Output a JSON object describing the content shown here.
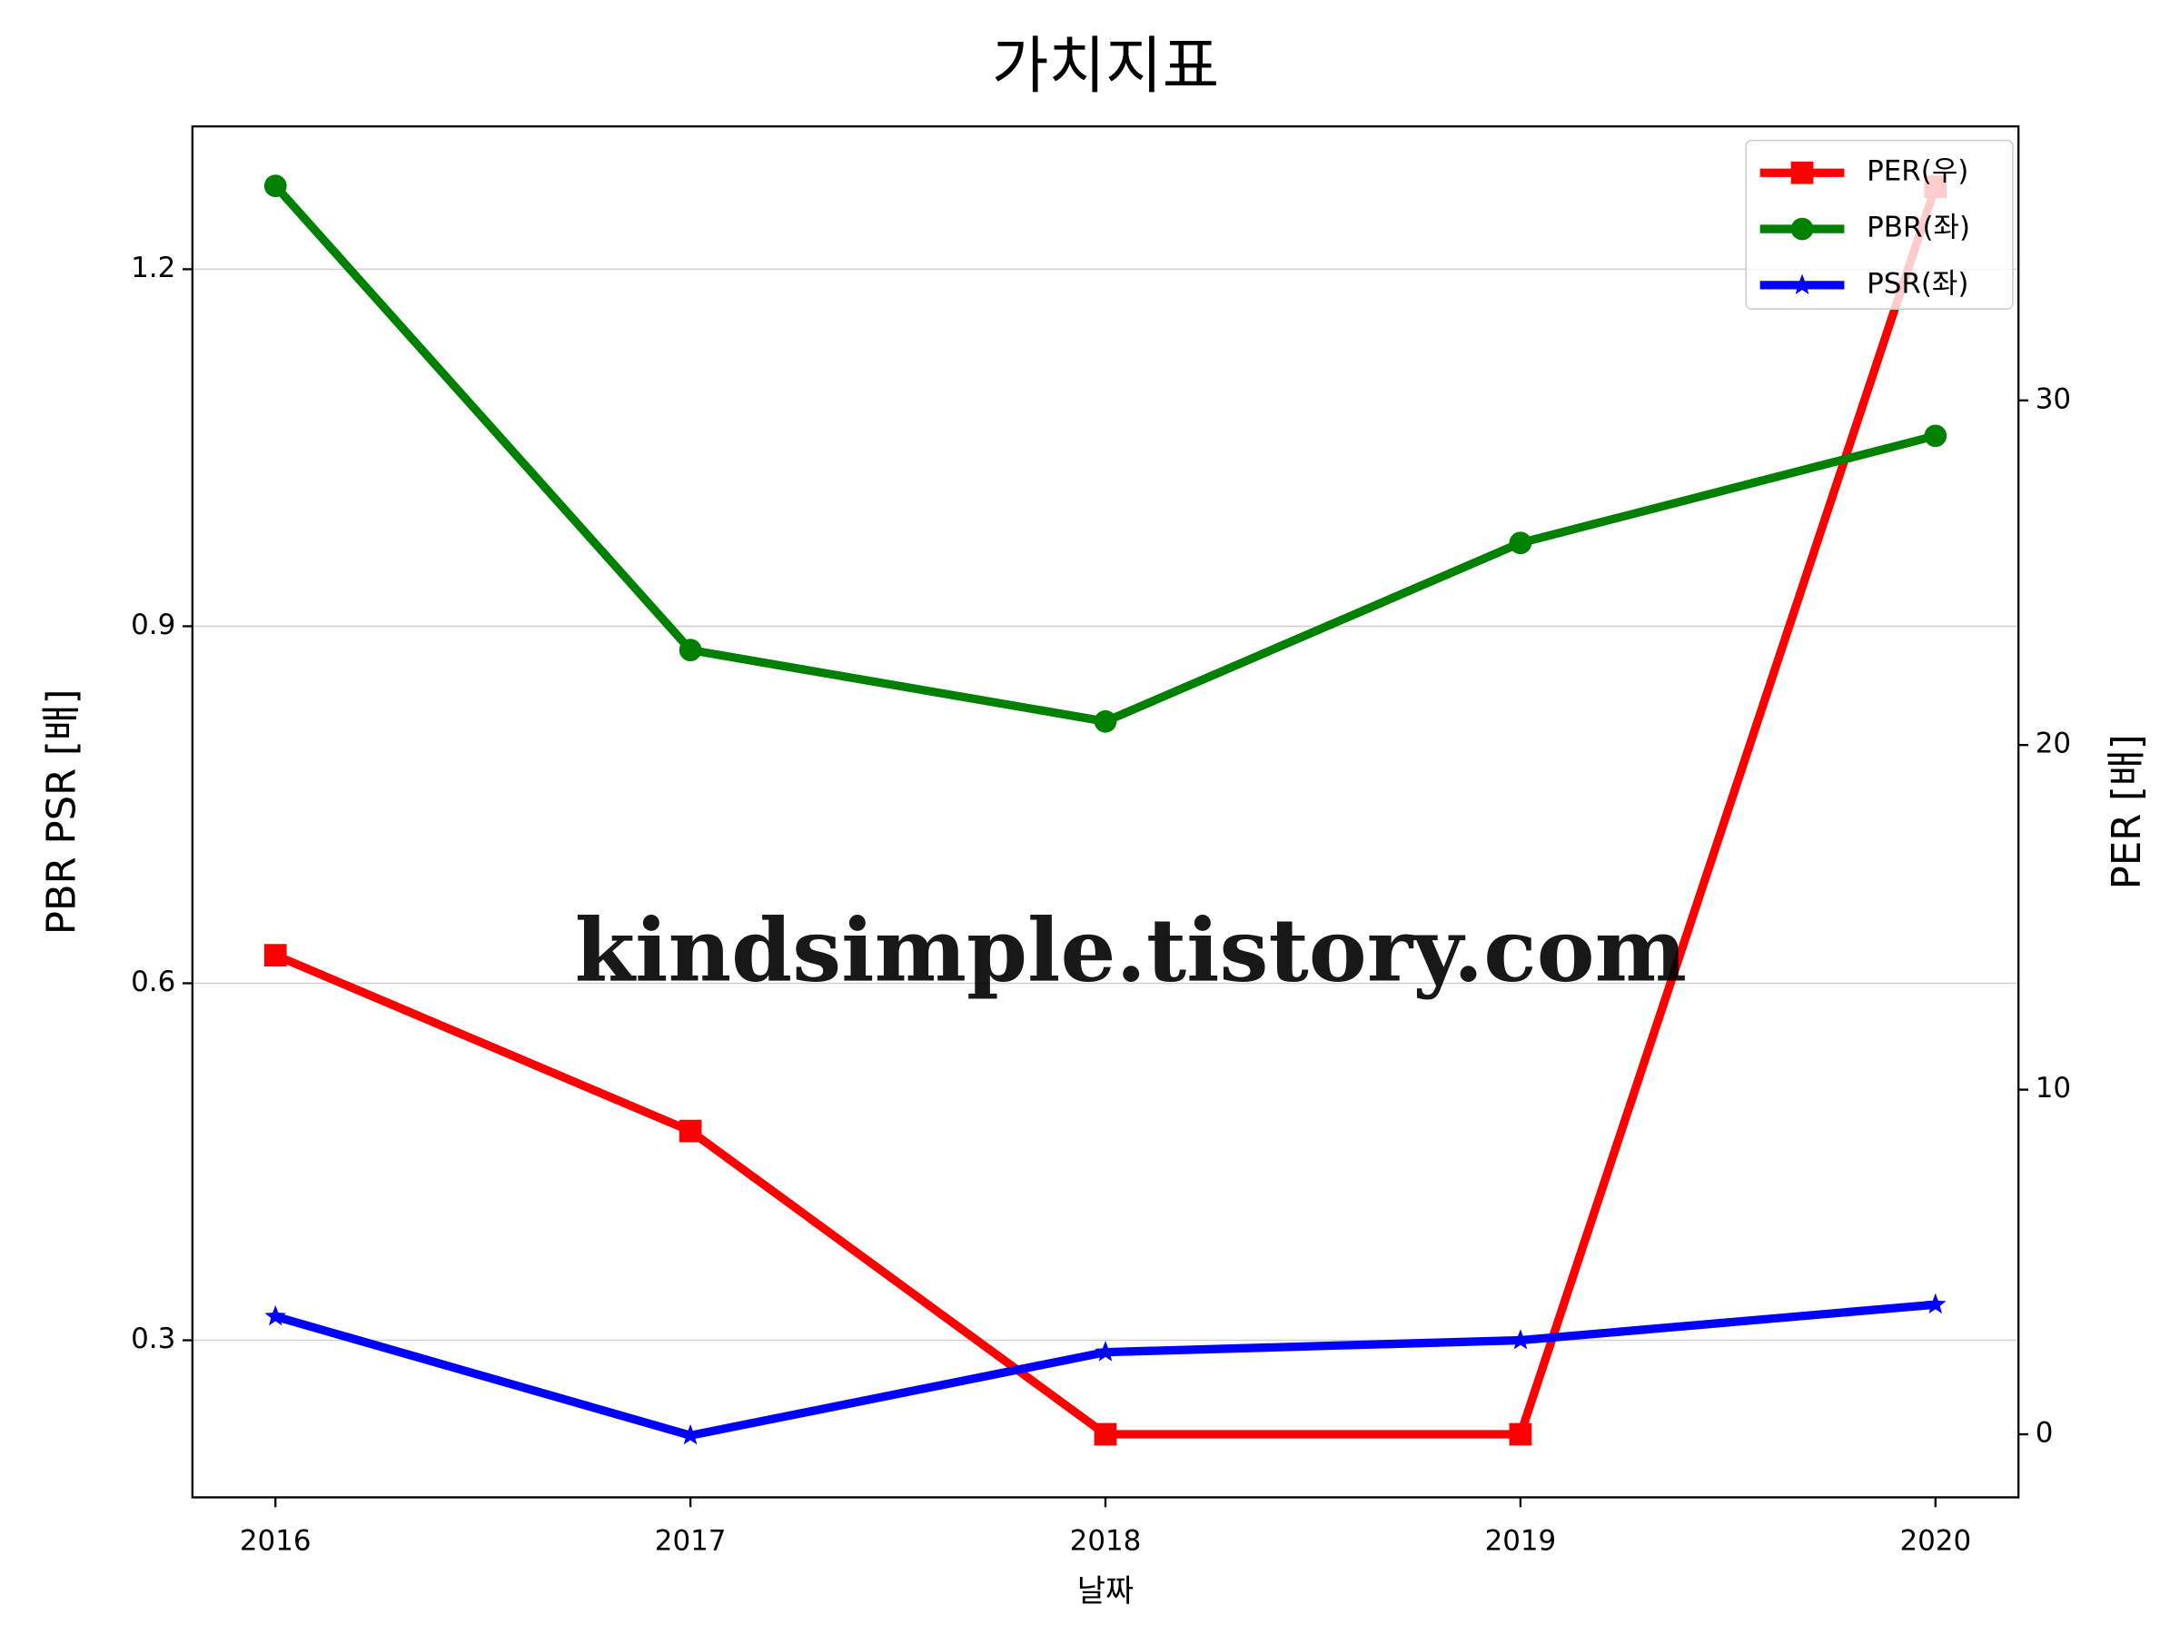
{
  "chart_data": {
    "type": "line",
    "title": "가치지표",
    "x_label": "날짜",
    "y_label": "PBR PSR [배]",
    "y2_label": "PER [배]",
    "y_label_color": "#008000",
    "y2_label_color": "#ff0000",
    "watermark": "kindsimple.tistory.com",
    "x": [
      2016,
      2017,
      2018,
      2019,
      2020
    ],
    "xlim": [
      2015.8,
      2020.2
    ],
    "xticks": [
      2016,
      2017,
      2018,
      2019,
      2020
    ],
    "ylim": [
      0.168,
      1.32
    ],
    "yticks": [
      0.3,
      0.6,
      0.9,
      1.2
    ],
    "y2lim": [
      -1.83,
      37.95
    ],
    "y2ticks": [
      0,
      10,
      20,
      30
    ],
    "grid": true,
    "legend": "upper right",
    "series": [
      {
        "name": "PER(우)",
        "color": "#ff0000",
        "marker": "square",
        "axis": "y2",
        "values": [
          13.9,
          8.8,
          0,
          0,
          36.2
        ]
      },
      {
        "name": "PBR(좌)",
        "color": "#008000",
        "marker": "circle",
        "values": [
          1.27,
          0.88,
          0.82,
          0.97,
          1.06
        ]
      },
      {
        "name": "PSR(좌)",
        "color": "#0000ff",
        "marker": "star",
        "values": [
          0.32,
          0.22,
          0.29,
          0.3,
          0.33
        ]
      }
    ]
  }
}
